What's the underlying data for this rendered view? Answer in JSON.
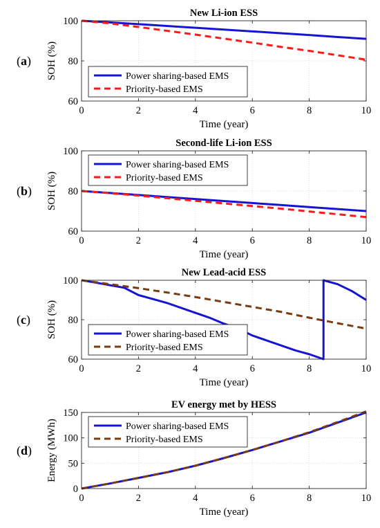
{
  "chart_data": [
    {
      "type": "line",
      "panel_label": "a",
      "title": "New Li-ion ESS",
      "xlabel": "Time (year)",
      "ylabel": "SOH (%)",
      "xlim": [
        0,
        10
      ],
      "ylim": [
        60,
        100
      ],
      "xticks": [
        "0",
        "2",
        "4",
        "6",
        "8",
        "10"
      ],
      "yticks": [
        "60",
        "80",
        "100"
      ],
      "grid": true,
      "legend": "bottom-left",
      "series": [
        {
          "name": "Power sharing-based EMS",
          "color": "#1414d2",
          "style": "solid",
          "x": [
            0,
            1,
            2,
            3,
            4,
            5,
            6,
            7,
            8,
            9,
            10
          ],
          "y": [
            100,
            99.2,
            98.3,
            97.4,
            96.5,
            95.6,
            94.7,
            93.8,
            92.9,
            91.9,
            91.0
          ]
        },
        {
          "name": "Priority-based EMS",
          "color": "#ff1a1a",
          "style": "dashed",
          "x": [
            0,
            1,
            2,
            3,
            4,
            5,
            6,
            7,
            8,
            9,
            10
          ],
          "y": [
            100,
            98.7,
            96.9,
            95.0,
            93.1,
            91.1,
            89.1,
            87.0,
            85.0,
            82.8,
            80.6
          ]
        }
      ]
    },
    {
      "type": "line",
      "panel_label": "b",
      "title": "Second-life Li-ion ESS",
      "xlabel": "Time (year)",
      "ylabel": "SOH (%)",
      "xlim": [
        0,
        10
      ],
      "ylim": [
        60,
        100
      ],
      "xticks": [
        "0",
        "2",
        "4",
        "6",
        "8",
        "10"
      ],
      "yticks": [
        "60",
        "80",
        "100"
      ],
      "grid": true,
      "legend": "top-left",
      "series": [
        {
          "name": "Power sharing-based EMS",
          "color": "#1414d2",
          "style": "solid",
          "x": [
            0,
            1,
            2,
            3,
            4,
            5,
            6,
            7,
            8,
            9,
            10
          ],
          "y": [
            80,
            79.0,
            78.0,
            77.0,
            76.0,
            75.0,
            74.0,
            73.0,
            72.0,
            71.0,
            70.0
          ]
        },
        {
          "name": "Priority-based EMS",
          "color": "#ff1a1a",
          "style": "dashed",
          "x": [
            0,
            1,
            2,
            3,
            4,
            5,
            6,
            7,
            8,
            9,
            10
          ],
          "y": [
            80,
            78.9,
            77.7,
            76.4,
            75.1,
            73.8,
            72.5,
            71.2,
            69.8,
            68.4,
            67.0
          ]
        }
      ]
    },
    {
      "type": "line",
      "panel_label": "c",
      "title": "New Lead-acid ESS",
      "xlabel": "Time (year)",
      "ylabel": "SOH (%)",
      "xlim": [
        0,
        10
      ],
      "ylim": [
        60,
        100
      ],
      "xticks": [
        "0",
        "2",
        "4",
        "6",
        "8",
        "10"
      ],
      "yticks": [
        "60",
        "80",
        "100"
      ],
      "grid": true,
      "legend": "bottom-left",
      "series": [
        {
          "name": "Power sharing-based EMS",
          "color": "#1414d2",
          "style": "solid",
          "x": [
            0,
            0.5,
            1,
            1.5,
            2,
            2.5,
            3,
            3.5,
            4,
            4.5,
            5,
            5.5,
            6,
            6.5,
            7,
            7.5,
            8,
            8.5,
            8.5,
            9,
            9.5,
            10
          ],
          "y": [
            100,
            98.8,
            97.5,
            96.2,
            92.5,
            90.5,
            88.5,
            86.0,
            83.5,
            81.0,
            78.0,
            75.5,
            72.0,
            69.5,
            67.0,
            64.5,
            62.5,
            60.0,
            100,
            98.0,
            94.5,
            90.0
          ]
        },
        {
          "name": "Priority-based EMS",
          "color": "#7a3b10",
          "style": "dashed",
          "x": [
            0,
            1,
            2,
            3,
            4,
            5,
            6,
            7,
            8,
            9,
            10
          ],
          "y": [
            100,
            98.0,
            96.0,
            93.8,
            91.5,
            89.0,
            86.5,
            84.0,
            81.0,
            78.2,
            75.5
          ]
        }
      ]
    },
    {
      "type": "line",
      "panel_label": "d",
      "title": "EV energy met by HESS",
      "xlabel": "Time (year)",
      "ylabel": "Energy (MWh)",
      "xlim": [
        0,
        10
      ],
      "ylim": [
        0,
        150
      ],
      "xticks": [
        "0",
        "2",
        "4",
        "6",
        "8",
        "10"
      ],
      "yticks": [
        "0",
        "50",
        "100",
        "150"
      ],
      "grid": true,
      "legend": "top-left",
      "series": [
        {
          "name": "Power sharing-based EMS",
          "color": "#1414d2",
          "style": "solid",
          "x": [
            0,
            1,
            2,
            3,
            4,
            5,
            6,
            7,
            8,
            9,
            10
          ],
          "y": [
            0,
            10,
            21,
            32,
            45,
            60,
            76,
            93,
            110,
            130,
            150
          ]
        },
        {
          "name": "Priority-based EMS",
          "color": "#7a3b10",
          "style": "dashed",
          "x": [
            0,
            1,
            2,
            3,
            4,
            5,
            6,
            7,
            8,
            9,
            10
          ],
          "y": [
            0,
            10,
            21,
            32,
            45,
            60,
            76,
            93,
            111,
            131,
            152
          ]
        }
      ]
    }
  ]
}
